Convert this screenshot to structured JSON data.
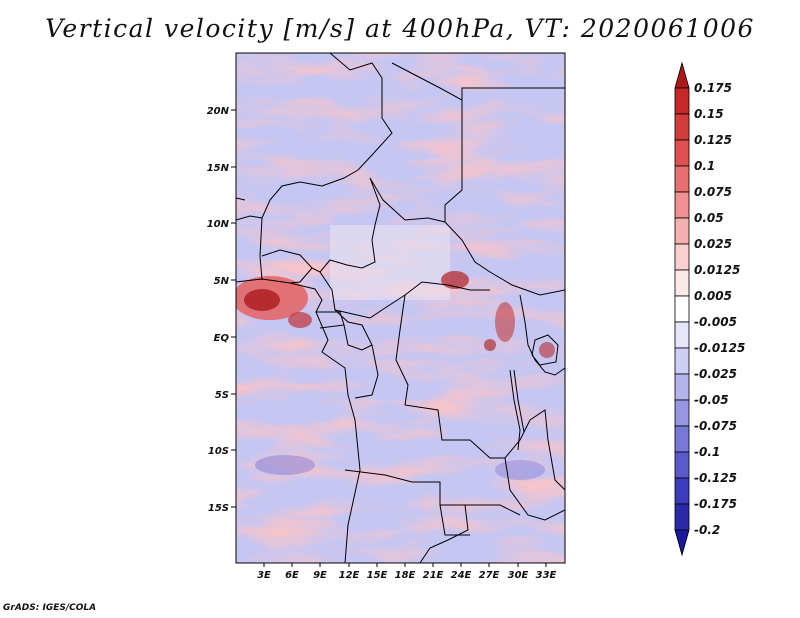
{
  "title": "Vertical velocity [m/s] at 400hPa, VT: 2020061006",
  "footer": "GrADS: IGES/COLA",
  "map": {
    "variable": "Vertical velocity",
    "units": "m/s",
    "level": "400hPa",
    "valid_time": "2020061006",
    "lat_labels": [
      "20N",
      "15N",
      "10N",
      "5N",
      "EQ",
      "5S",
      "10S",
      "15S"
    ],
    "lon_labels": [
      "3E",
      "6E",
      "9E",
      "12E",
      "15E",
      "18E",
      "21E",
      "24E",
      "27E",
      "30E",
      "33E"
    ]
  },
  "colorbar": {
    "labels": [
      "0.175",
      "0.15",
      "0.125",
      "0.1",
      "0.075",
      "0.05",
      "0.025",
      "0.0125",
      "0.005",
      "-0.005",
      "-0.0125",
      "-0.025",
      "-0.05",
      "-0.075",
      "-0.1",
      "-0.125",
      "-0.175",
      "-0.2"
    ],
    "colors": [
      "#b01818",
      "#c62828",
      "#d43c3c",
      "#e05050",
      "#e87070",
      "#f09090",
      "#f5b0b0",
      "#f9cfcf",
      "#fce8e8",
      "#ffffff",
      "#e6e6fa",
      "#cfcff3",
      "#b4b4ec",
      "#9696e2",
      "#7878d8",
      "#5a5acc",
      "#3c3cbe",
      "#2a2aa8",
      "#1818a0"
    ]
  }
}
